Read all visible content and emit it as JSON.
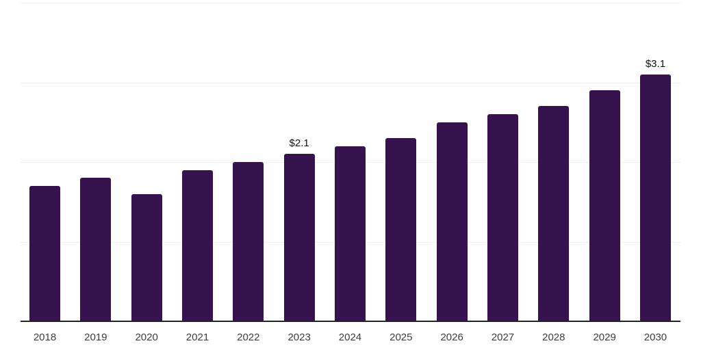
{
  "chart_data": {
    "type": "bar",
    "title": "",
    "xlabel": "",
    "ylabel": "",
    "categories": [
      "2018",
      "2019",
      "2020",
      "2021",
      "2022",
      "2023",
      "2024",
      "2025",
      "2026",
      "2027",
      "2028",
      "2029",
      "2030"
    ],
    "values": [
      1.7,
      1.8,
      1.6,
      1.9,
      2.0,
      2.1,
      2.2,
      2.3,
      2.5,
      2.6,
      2.7,
      2.9,
      3.1
    ],
    "data_labels": [
      null,
      null,
      null,
      null,
      null,
      "$2.1",
      null,
      null,
      null,
      null,
      null,
      null,
      "$3.1"
    ],
    "ylim": [
      0,
      4
    ],
    "gridline_values": [
      1,
      2,
      3,
      4
    ],
    "grid": true,
    "legend_position": "none"
  },
  "colors": {
    "bar": "#36124f",
    "gridline": "#f0f0f0",
    "axis": "#222222",
    "tick_label": "#3d3d3d",
    "data_label": "#111111",
    "background": "#ffffff"
  }
}
